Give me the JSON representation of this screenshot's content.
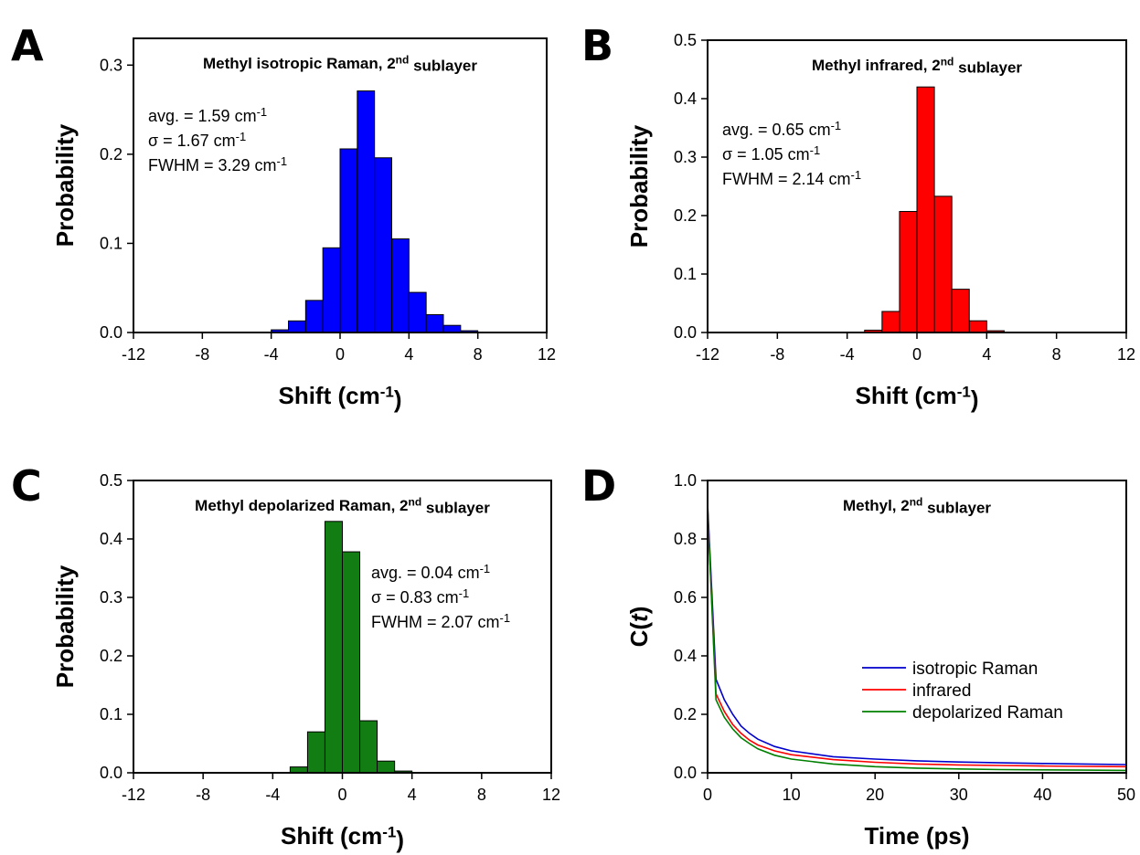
{
  "chart_data": [
    {
      "panel": "A",
      "type": "bar",
      "title": "Methyl isotropic Raman, 2nd sublayer",
      "title_main": "Methyl isotropic Raman, 2",
      "title_sup": "nd",
      "title_tail": " sublayer",
      "xlabel": "Shift (cm-1)",
      "xlabel_main": "Shift (cm",
      "xlabel_sup": "-1",
      "xlabel_tail": ")",
      "ylabel": "Probability",
      "xlim": [
        -12,
        12
      ],
      "ylim": [
        0,
        0.33
      ],
      "xticks": [
        -12,
        -8,
        -4,
        0,
        4,
        8,
        12
      ],
      "xtick_labels": [
        "-12",
        "-8",
        "-4",
        "0",
        "4",
        "8",
        "12"
      ],
      "yticks": [
        0,
        0.1,
        0.2,
        0.3
      ],
      "ytick_labels": [
        "0.0",
        "0.1",
        "0.2",
        "0.3"
      ],
      "color": "#0000ff",
      "bin_width": 1,
      "bin_centers": [
        -3.5,
        -2.5,
        -1.5,
        -0.5,
        0.5,
        1.5,
        2.5,
        3.5,
        4.5,
        5.5,
        6.5,
        7.5
      ],
      "values": [
        0.003,
        0.013,
        0.036,
        0.095,
        0.206,
        0.271,
        0.196,
        0.105,
        0.045,
        0.02,
        0.008,
        0.002
      ],
      "stats": [
        {
          "main": "avg. = 1.59 cm",
          "sup": "-1"
        },
        {
          "main": "σ = 1.67 cm",
          "sup": "-1"
        },
        {
          "main": "FWHM = 3.29 cm",
          "sup": "-1"
        }
      ]
    },
    {
      "panel": "B",
      "type": "bar",
      "title": "Methyl infrared, 2nd sublayer",
      "title_main": "Methyl infrared, 2",
      "title_sup": "nd",
      "title_tail": " sublayer",
      "xlabel": "Shift (cm-1)",
      "xlabel_main": "Shift (cm",
      "xlabel_sup": "-1",
      "xlabel_tail": ")",
      "ylabel": "Probability",
      "xlim": [
        -12,
        12
      ],
      "ylim": [
        0,
        0.5
      ],
      "xticks": [
        -12,
        -8,
        -4,
        0,
        4,
        8,
        12
      ],
      "xtick_labels": [
        "-12",
        "-8",
        "-4",
        "0",
        "4",
        "8",
        "12"
      ],
      "yticks": [
        0,
        0.1,
        0.2,
        0.3,
        0.4,
        0.5
      ],
      "ytick_labels": [
        "0.0",
        "0.1",
        "0.2",
        "0.3",
        "0.4",
        "0.5"
      ],
      "color": "#ff0000",
      "bin_width": 1,
      "bin_centers": [
        -2.5,
        -1.5,
        -0.5,
        0.5,
        1.5,
        2.5,
        3.5,
        4.5
      ],
      "values": [
        0.004,
        0.036,
        0.207,
        0.42,
        0.233,
        0.074,
        0.02,
        0.003
      ],
      "stats": [
        {
          "main": "avg. = 0.65 cm",
          "sup": "-1"
        },
        {
          "main": "σ = 1.05 cm",
          "sup": "-1"
        },
        {
          "main": "FWHM = 2.14 cm",
          "sup": "-1"
        }
      ]
    },
    {
      "panel": "C",
      "type": "bar",
      "title": "Methyl depolarized Raman, 2nd sublayer",
      "title_main": "Methyl depolarized Raman, 2",
      "title_sup": "nd",
      "title_tail": " sublayer",
      "xlabel": "Shift (cm-1)",
      "xlabel_main": "Shift (cm",
      "xlabel_sup": "-1",
      "xlabel_tail": ")",
      "ylabel": "Probability",
      "xlim": [
        -12,
        12
      ],
      "ylim": [
        0,
        0.5
      ],
      "xticks": [
        -12,
        -8,
        -4,
        0,
        4,
        8,
        12
      ],
      "xtick_labels": [
        "-12",
        "-8",
        "-4",
        "0",
        "4",
        "8",
        "12"
      ],
      "yticks": [
        0,
        0.1,
        0.2,
        0.3,
        0.4,
        0.5
      ],
      "ytick_labels": [
        "0.0",
        "0.1",
        "0.2",
        "0.3",
        "0.4",
        "0.5"
      ],
      "color": "#127d12",
      "bin_width": 1,
      "bin_centers": [
        -2.5,
        -1.5,
        -0.5,
        0.5,
        1.5,
        2.5,
        3.5
      ],
      "values": [
        0.01,
        0.07,
        0.43,
        0.378,
        0.089,
        0.02,
        0.003
      ],
      "stats": [
        {
          "main": "avg. = 0.04 cm",
          "sup": "-1"
        },
        {
          "main": "σ = 0.83 cm",
          "sup": "-1"
        },
        {
          "main": "FWHM = 2.07 cm",
          "sup": "-1"
        }
      ]
    },
    {
      "panel": "D",
      "type": "line",
      "title": "Methyl, 2nd sublayer",
      "title_main": "Methyl, 2",
      "title_sup": "nd",
      "title_tail": " sublayer",
      "xlabel": "Time (ps)",
      "ylabel": "C(t)",
      "ylabel_pre": "C(",
      "ylabel_var": "t",
      "ylabel_post": ")",
      "xlim": [
        0,
        50
      ],
      "ylim": [
        0,
        1.0
      ],
      "xticks": [
        0,
        10,
        20,
        30,
        40,
        50
      ],
      "xtick_labels": [
        "0",
        "10",
        "20",
        "30",
        "40",
        "50"
      ],
      "yticks": [
        0,
        0.2,
        0.4,
        0.6,
        0.8,
        1.0
      ],
      "ytick_labels": [
        "0.0",
        "0.2",
        "0.4",
        "0.6",
        "0.8",
        "1.0"
      ],
      "legend_position": "center-right",
      "series": [
        {
          "name": "isotropic Raman",
          "color": "#0000cc",
          "x": [
            0,
            1,
            2,
            3,
            4,
            5,
            6,
            8,
            10,
            15,
            20,
            25,
            30,
            35,
            40,
            45,
            50
          ],
          "y": [
            0.92,
            0.32,
            0.25,
            0.2,
            0.16,
            0.135,
            0.115,
            0.09,
            0.075,
            0.055,
            0.047,
            0.041,
            0.037,
            0.034,
            0.032,
            0.03,
            0.028
          ]
        },
        {
          "name": "infrared",
          "color": "#ff0000",
          "x": [
            0,
            1,
            2,
            3,
            4,
            5,
            6,
            8,
            10,
            15,
            20,
            25,
            30,
            35,
            40,
            45,
            50
          ],
          "y": [
            0.9,
            0.27,
            0.21,
            0.165,
            0.135,
            0.112,
            0.095,
            0.075,
            0.062,
            0.045,
            0.036,
            0.03,
            0.027,
            0.025,
            0.023,
            0.022,
            0.021
          ]
        },
        {
          "name": "depolarized Raman",
          "color": "#008000",
          "x": [
            0,
            1,
            2,
            3,
            4,
            5,
            6,
            8,
            10,
            15,
            20,
            25,
            30,
            35,
            40,
            45,
            50
          ],
          "y": [
            0.9,
            0.25,
            0.19,
            0.15,
            0.12,
            0.1,
            0.082,
            0.06,
            0.047,
            0.03,
            0.021,
            0.016,
            0.013,
            0.011,
            0.01,
            0.009,
            0.008
          ]
        }
      ]
    }
  ]
}
